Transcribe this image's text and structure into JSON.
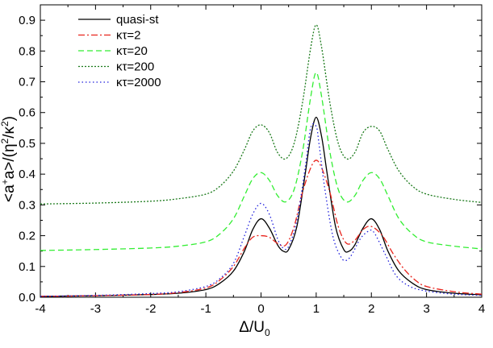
{
  "chart_data": {
    "type": "line",
    "xlabel": {
      "main": "Δ/U",
      "sub": "0"
    },
    "ylabel": {
      "part1": "<a",
      "sup1": "+",
      "part2": "a>/(η",
      "sup2": "2",
      "part3": "/κ",
      "sup3": "2",
      "part4": ")"
    },
    "xlim": [
      -4,
      4
    ],
    "ylim": [
      0,
      0.95
    ],
    "xticks": [
      -4,
      -3,
      -2,
      -1,
      0,
      1,
      2,
      3,
      4
    ],
    "xtick_labels": [
      "-4",
      "-3",
      "-2",
      "-1",
      "0",
      "1",
      "2",
      "3",
      "4"
    ],
    "yticks": [
      0.0,
      0.1,
      0.2,
      0.3,
      0.4,
      0.5,
      0.6,
      0.7,
      0.8,
      0.9
    ],
    "ytick_labels": [
      "0.0",
      "0.1",
      "0.2",
      "0.3",
      "0.4",
      "0.5",
      "0.6",
      "0.7",
      "0.8",
      "0.9"
    ],
    "grid": false,
    "legend_position": "top-left",
    "series": [
      {
        "name": "quasi-st",
        "color": "#000000",
        "dash": "solid",
        "points": [
          [
            -4,
            0.003
          ],
          [
            -3,
            0.005
          ],
          [
            -2,
            0.009
          ],
          [
            -1.5,
            0.013
          ],
          [
            -1,
            0.025
          ],
          [
            -0.75,
            0.045
          ],
          [
            -0.5,
            0.085
          ],
          [
            -0.3,
            0.15
          ],
          [
            -0.15,
            0.22
          ],
          [
            0,
            0.255
          ],
          [
            0.15,
            0.225
          ],
          [
            0.3,
            0.17
          ],
          [
            0.4,
            0.15
          ],
          [
            0.5,
            0.155
          ],
          [
            0.65,
            0.23
          ],
          [
            0.8,
            0.4
          ],
          [
            0.9,
            0.52
          ],
          [
            1,
            0.585
          ],
          [
            1.1,
            0.52
          ],
          [
            1.2,
            0.4
          ],
          [
            1.35,
            0.23
          ],
          [
            1.5,
            0.155
          ],
          [
            1.6,
            0.15
          ],
          [
            1.7,
            0.17
          ],
          [
            1.85,
            0.225
          ],
          [
            2,
            0.255
          ],
          [
            2.15,
            0.22
          ],
          [
            2.3,
            0.15
          ],
          [
            2.5,
            0.085
          ],
          [
            2.75,
            0.045
          ],
          [
            3,
            0.025
          ],
          [
            3.5,
            0.013
          ],
          [
            4,
            0.008
          ]
        ]
      },
      {
        "name": "κτ=2",
        "color": "#e8241c",
        "dash": "dashdot",
        "points": [
          [
            -4,
            0.003
          ],
          [
            -3,
            0.005
          ],
          [
            -2,
            0.009
          ],
          [
            -1.5,
            0.015
          ],
          [
            -1,
            0.03
          ],
          [
            -0.75,
            0.055
          ],
          [
            -0.5,
            0.1
          ],
          [
            -0.3,
            0.16
          ],
          [
            -0.15,
            0.195
          ],
          [
            0,
            0.2
          ],
          [
            0.15,
            0.195
          ],
          [
            0.3,
            0.175
          ],
          [
            0.45,
            0.17
          ],
          [
            0.6,
            0.23
          ],
          [
            0.75,
            0.34
          ],
          [
            0.9,
            0.42
          ],
          [
            1,
            0.445
          ],
          [
            1.1,
            0.42
          ],
          [
            1.25,
            0.34
          ],
          [
            1.4,
            0.23
          ],
          [
            1.55,
            0.175
          ],
          [
            1.7,
            0.185
          ],
          [
            1.85,
            0.22
          ],
          [
            2,
            0.23
          ],
          [
            2.2,
            0.2
          ],
          [
            2.4,
            0.14
          ],
          [
            2.6,
            0.09
          ],
          [
            2.8,
            0.055
          ],
          [
            3,
            0.035
          ],
          [
            3.5,
            0.018
          ],
          [
            4,
            0.01
          ]
        ]
      },
      {
        "name": "κτ=20",
        "color": "#33ee33",
        "dash": "dash",
        "points": [
          [
            -4,
            0.152
          ],
          [
            -3,
            0.155
          ],
          [
            -2,
            0.16
          ],
          [
            -1.5,
            0.166
          ],
          [
            -1,
            0.18
          ],
          [
            -0.75,
            0.205
          ],
          [
            -0.5,
            0.255
          ],
          [
            -0.3,
            0.33
          ],
          [
            -0.15,
            0.385
          ],
          [
            0,
            0.405
          ],
          [
            0.15,
            0.38
          ],
          [
            0.3,
            0.33
          ],
          [
            0.45,
            0.31
          ],
          [
            0.6,
            0.35
          ],
          [
            0.75,
            0.47
          ],
          [
            0.9,
            0.65
          ],
          [
            1,
            0.73
          ],
          [
            1.1,
            0.65
          ],
          [
            1.25,
            0.47
          ],
          [
            1.4,
            0.35
          ],
          [
            1.55,
            0.31
          ],
          [
            1.7,
            0.33
          ],
          [
            1.85,
            0.38
          ],
          [
            2,
            0.405
          ],
          [
            2.15,
            0.385
          ],
          [
            2.3,
            0.33
          ],
          [
            2.5,
            0.255
          ],
          [
            2.75,
            0.205
          ],
          [
            3,
            0.18
          ],
          [
            3.5,
            0.166
          ],
          [
            4,
            0.157
          ]
        ]
      },
      {
        "name": "κτ=200",
        "color": "#1b7a1b",
        "dash": "dot",
        "points": [
          [
            -4,
            0.303
          ],
          [
            -3,
            0.306
          ],
          [
            -2,
            0.312
          ],
          [
            -1.5,
            0.32
          ],
          [
            -1,
            0.335
          ],
          [
            -0.75,
            0.36
          ],
          [
            -0.5,
            0.41
          ],
          [
            -0.3,
            0.48
          ],
          [
            -0.15,
            0.54
          ],
          [
            0,
            0.56
          ],
          [
            0.15,
            0.535
          ],
          [
            0.3,
            0.47
          ],
          [
            0.45,
            0.45
          ],
          [
            0.6,
            0.5
          ],
          [
            0.75,
            0.63
          ],
          [
            0.9,
            0.81
          ],
          [
            1,
            0.885
          ],
          [
            1.1,
            0.81
          ],
          [
            1.25,
            0.63
          ],
          [
            1.4,
            0.5
          ],
          [
            1.55,
            0.45
          ],
          [
            1.7,
            0.47
          ],
          [
            1.85,
            0.535
          ],
          [
            2,
            0.555
          ],
          [
            2.15,
            0.54
          ],
          [
            2.3,
            0.48
          ],
          [
            2.5,
            0.41
          ],
          [
            2.75,
            0.36
          ],
          [
            3,
            0.335
          ],
          [
            3.5,
            0.318
          ],
          [
            4,
            0.308
          ]
        ]
      },
      {
        "name": "κτ=2000",
        "color": "#2020dd",
        "dash": "dotfine",
        "points": [
          [
            -4,
            0.003
          ],
          [
            -3,
            0.006
          ],
          [
            -2,
            0.012
          ],
          [
            -1.5,
            0.018
          ],
          [
            -1,
            0.035
          ],
          [
            -0.75,
            0.06
          ],
          [
            -0.5,
            0.11
          ],
          [
            -0.3,
            0.2
          ],
          [
            -0.15,
            0.27
          ],
          [
            0,
            0.305
          ],
          [
            0.15,
            0.27
          ],
          [
            0.3,
            0.19
          ],
          [
            0.4,
            0.16
          ],
          [
            0.5,
            0.165
          ],
          [
            0.65,
            0.25
          ],
          [
            0.8,
            0.42
          ],
          [
            0.9,
            0.55
          ],
          [
            1,
            0.555
          ],
          [
            1.05,
            0.5
          ],
          [
            1.15,
            0.36
          ],
          [
            1.3,
            0.2
          ],
          [
            1.45,
            0.13
          ],
          [
            1.55,
            0.12
          ],
          [
            1.65,
            0.14
          ],
          [
            1.8,
            0.19
          ],
          [
            1.95,
            0.215
          ],
          [
            2.05,
            0.21
          ],
          [
            2.25,
            0.14
          ],
          [
            2.45,
            0.07
          ],
          [
            2.7,
            0.035
          ],
          [
            3,
            0.02
          ],
          [
            3.5,
            0.01
          ],
          [
            4,
            0.006
          ]
        ]
      }
    ]
  }
}
